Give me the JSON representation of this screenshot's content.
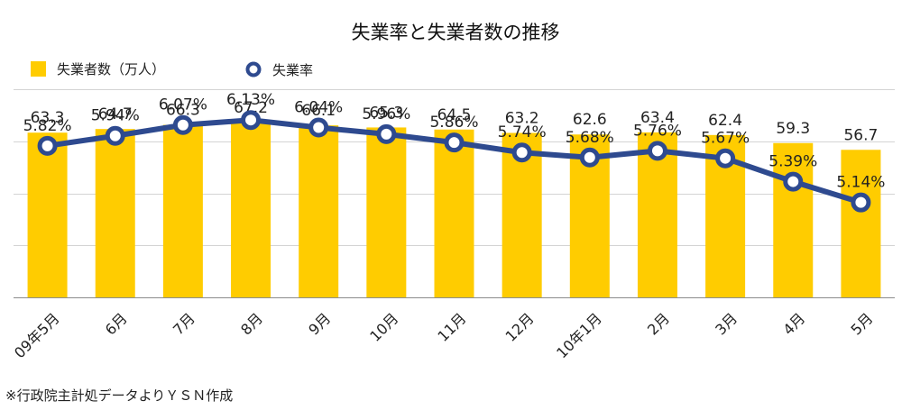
{
  "chart_data": {
    "type": "bar",
    "title": "失業率と失業者数の推移",
    "categories": [
      "09年5月",
      "6月",
      "7月",
      "8月",
      "9月",
      "10月",
      "11月",
      "12月",
      "10年1月",
      "2月",
      "3月",
      "4月",
      "5月"
    ],
    "series": [
      {
        "name": "失業者数（万人）",
        "type": "bar",
        "axis": "left",
        "color": "#FFCC00",
        "values": [
          63.3,
          64.7,
          66.3,
          67.2,
          66.1,
          65.3,
          64.5,
          63.2,
          62.6,
          63.4,
          62.4,
          59.3,
          56.7
        ],
        "labels": [
          "63.3",
          "64.7",
          "66.3",
          "67.2",
          "66.1",
          "65.3",
          "64.5",
          "63.2",
          "62.6",
          "63.4",
          "62.4",
          "59.3",
          "56.7"
        ]
      },
      {
        "name": "失業率",
        "type": "line",
        "axis": "right",
        "color": "#2E4A8F",
        "values": [
          5.82,
          5.94,
          6.07,
          6.13,
          6.04,
          5.96,
          5.86,
          5.74,
          5.68,
          5.76,
          5.67,
          5.39,
          5.14
        ],
        "labels": [
          "5.82%",
          "5.94%",
          "6.07%",
          "6.13%",
          "6.04%",
          "5.96%",
          "5.86%",
          "5.74%",
          "5.68%",
          "5.76%",
          "5.67%",
          "5.39%",
          "5.14%"
        ]
      }
    ],
    "ylim_left": [
      0,
      80
    ],
    "ylim_right": [
      4.0,
      6.5
    ],
    "xlabel": "",
    "ylabel": "",
    "grid": true,
    "legend_position": "top-left",
    "tick_labels_y": "hidden"
  },
  "source_note": "※行政院主計処データよりＹＳＮ作成"
}
